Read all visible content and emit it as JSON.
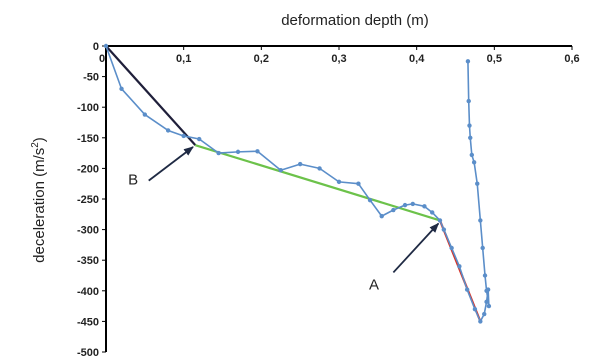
{
  "chart_data": {
    "type": "line",
    "xlabel": "deformation depth (m)",
    "ylabel_main": "deceleration (m/s",
    "ylabel_sup": "2",
    "ylabel_end": ")",
    "xlim": [
      0,
      0.6
    ],
    "ylim": [
      -500,
      0
    ],
    "x_ticks": [
      0,
      0.1,
      0.2,
      0.3,
      0.4,
      0.5,
      0.6
    ],
    "x_tick_labels": [
      "0",
      "0,1",
      "0,2",
      "0,3",
      "0,4",
      "0,5",
      "0,6"
    ],
    "y_ticks": [
      0,
      -50,
      -100,
      -150,
      -200,
      -250,
      -300,
      -350,
      -400,
      -450,
      -500
    ],
    "y_tick_labels": [
      "0",
      "-50",
      "-100",
      "-150",
      "-200",
      "-250",
      "-300",
      "-350",
      "-400",
      "-450",
      "-500"
    ],
    "grid": false,
    "x_axis_position": "top",
    "colors": {
      "series": "#5b8ec9",
      "fit1": "#1f1f3a",
      "fit2": "#6cc24a",
      "fit3": "#d93025",
      "arrow": "#1f2a44"
    },
    "series": [
      {
        "x": [
          0,
          0.02,
          0.05,
          0.08,
          0.1,
          0.12,
          0.145,
          0.17,
          0.195,
          0.225,
          0.25,
          0.275,
          0.3,
          0.325,
          0.34,
          0.355,
          0.37,
          0.385,
          0.395,
          0.41,
          0.42,
          0.43,
          0.435,
          0.445,
          0.455,
          0.465,
          0.475,
          0.482,
          0.487,
          0.49,
          0.492,
          0.493,
          0.49,
          0.488,
          0.485,
          0.482,
          0.478,
          0.474,
          0.471,
          0.469,
          0.468,
          0.467,
          0.466
        ],
        "y": [
          0,
          -70,
          -112,
          -138,
          -147,
          -152,
          -175,
          -173,
          -172,
          -203,
          -193,
          -200,
          -222,
          -225,
          -252,
          -278,
          -268,
          -260,
          -258,
          -262,
          -272,
          -285,
          -300,
          -330,
          -360,
          -398,
          -430,
          -450,
          -438,
          -418,
          -398,
          -425,
          -400,
          -375,
          -330,
          -285,
          -225,
          -190,
          -178,
          -150,
          -130,
          -90,
          -25
        ]
      }
    ],
    "fit_lines": [
      {
        "x": [
          0,
          0.115
        ],
        "y": [
          0,
          -162
        ]
      },
      {
        "x": [
          0.115,
          0.43
        ],
        "y": [
          -162,
          -285
        ]
      },
      {
        "x": [
          0.43,
          0.482
        ],
        "y": [
          -285,
          -450
        ]
      }
    ],
    "annotations": [
      {
        "label": "A",
        "text_x": 0.345,
        "text_y": -390,
        "arrow_from": [
          0.37,
          -370
        ],
        "arrow_to": [
          0.428,
          -290
        ]
      },
      {
        "label": "B",
        "text_x": 0.035,
        "text_y": -218,
        "arrow_from": [
          0.055,
          -220
        ],
        "arrow_to": [
          0.112,
          -165
        ]
      }
    ]
  }
}
